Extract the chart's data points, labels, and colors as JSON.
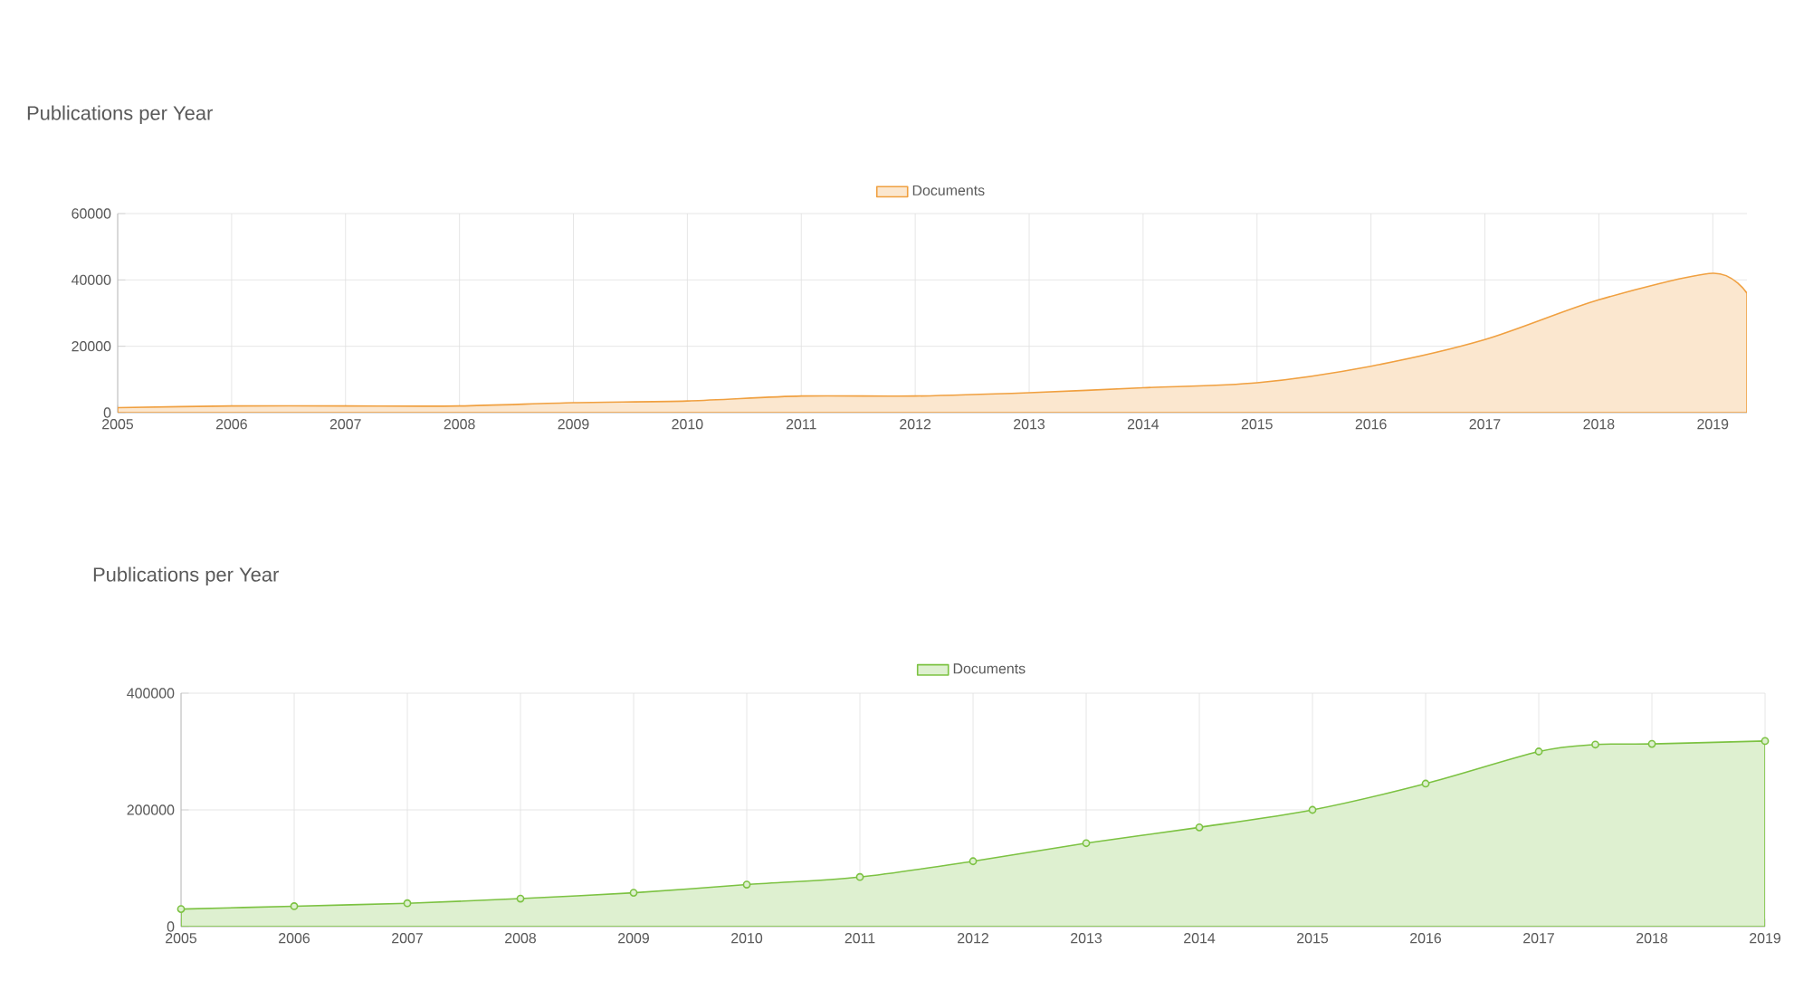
{
  "chart_data": [
    {
      "type": "area",
      "title": "Publications per Year",
      "x": [
        2005,
        2006,
        2007,
        2008,
        2009,
        2010,
        2011,
        2012,
        2013,
        2014,
        2015,
        2016,
        2017,
        2018,
        2019,
        2019.3
      ],
      "series": [
        {
          "name": "Documents",
          "color": "#f0a040",
          "values": [
            1500,
            2000,
            2000,
            2000,
            3000,
            3500,
            5000,
            5000,
            6000,
            7500,
            9000,
            14000,
            22000,
            34000,
            42000,
            36000
          ]
        }
      ],
      "xlim": [
        2005,
        2019.3
      ],
      "xticks": [
        2005,
        2006,
        2007,
        2008,
        2009,
        2010,
        2011,
        2012,
        2013,
        2014,
        2015,
        2016,
        2017,
        2018,
        2019
      ],
      "ylim": [
        0,
        60000
      ],
      "yticks": [
        0,
        20000,
        40000,
        60000
      ],
      "grid": true,
      "legend": "top",
      "marker": "none",
      "line_style": "solid"
    },
    {
      "type": "area",
      "title": "Publications per Year",
      "x": [
        2005,
        2006,
        2007,
        2008,
        2009,
        2010,
        2011,
        2012,
        2013,
        2014,
        2015,
        2016,
        2017,
        2017.5,
        2018,
        2019
      ],
      "series": [
        {
          "name": "Documents",
          "color": "#7cc242",
          "values": [
            30000,
            35000,
            40000,
            48000,
            58000,
            72000,
            85000,
            112000,
            143000,
            170000,
            200000,
            245000,
            300000,
            312000,
            313000,
            318000
          ]
        }
      ],
      "xlim": [
        2005,
        2019
      ],
      "xticks": [
        2005,
        2006,
        2007,
        2008,
        2009,
        2010,
        2011,
        2012,
        2013,
        2014,
        2015,
        2016,
        2017,
        2018,
        2019
      ],
      "ylim": [
        0,
        400000
      ],
      "yticks": [
        0,
        200000,
        400000
      ],
      "grid": true,
      "legend": "top",
      "marker": "circle",
      "line_style": "solid"
    }
  ]
}
